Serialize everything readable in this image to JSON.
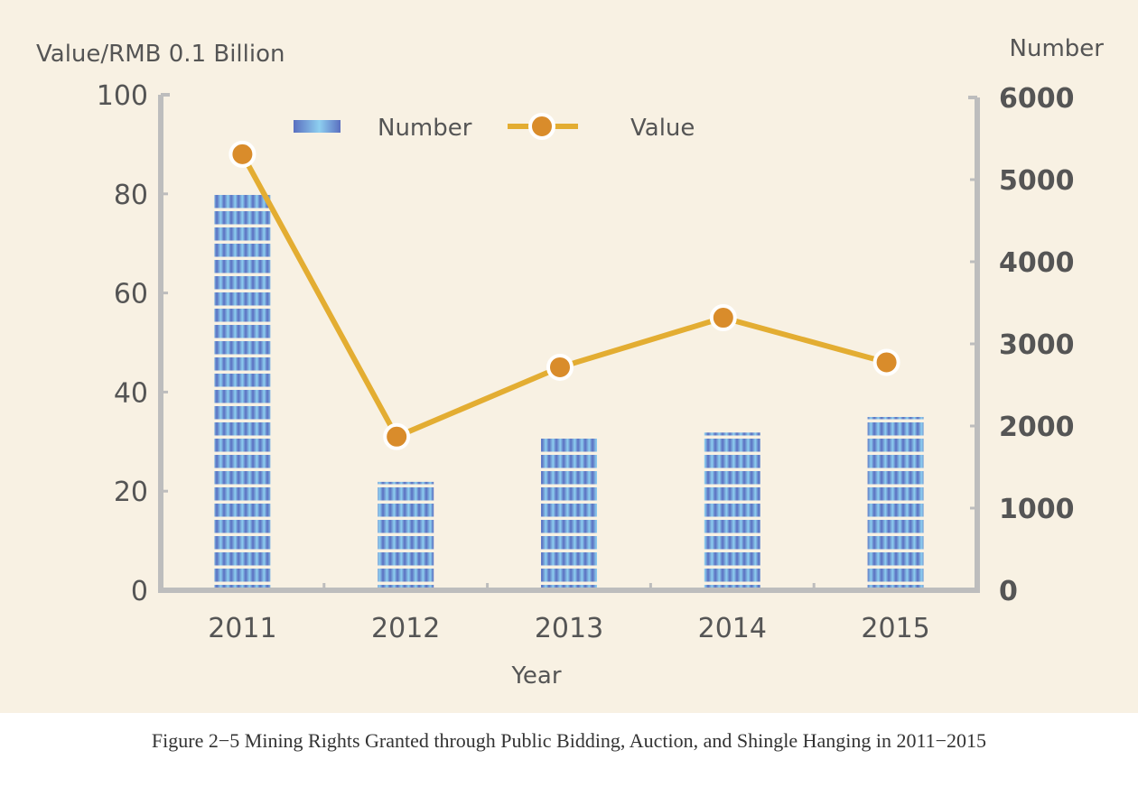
{
  "caption": "Figure 2−5 Mining Rights Granted through Public Bidding, Auction, and Shingle Hanging in 2011−2015",
  "colors": {
    "background": "#f8f1e3",
    "axis": "#bdbdbd",
    "bar_dark": "#5a6fc0",
    "bar_light": "#8ecff0",
    "line": "#e3ad32",
    "point": "#d98c2b",
    "text": "#555555"
  },
  "chart_data": {
    "type": "bar",
    "title": "",
    "xlabel": "Year",
    "ylabel_left": "Value/RMB 0.1 Billion",
    "ylabel_right": "Number",
    "categories": [
      "2011",
      "2012",
      "2013",
      "2014",
      "2015"
    ],
    "ylim_left": [
      0,
      100
    ],
    "ylim_right": [
      0,
      6000
    ],
    "yticks_left": [
      "0",
      "20",
      "40",
      "60",
      "80",
      "100"
    ],
    "yticks_right": [
      "0",
      "1000",
      "2000",
      "3000",
      "4000",
      "5000",
      "6000"
    ],
    "grid": false,
    "legend": {
      "placement": "top-center",
      "entries": [
        "Number",
        "Value"
      ]
    },
    "series": [
      {
        "name": "Number",
        "type": "bar",
        "axis": "right",
        "values": [
          4850,
          1320,
          1870,
          1920,
          2110
        ]
      },
      {
        "name": "Value",
        "type": "line",
        "axis": "left",
        "values": [
          88,
          31,
          45,
          55,
          46
        ]
      }
    ]
  }
}
